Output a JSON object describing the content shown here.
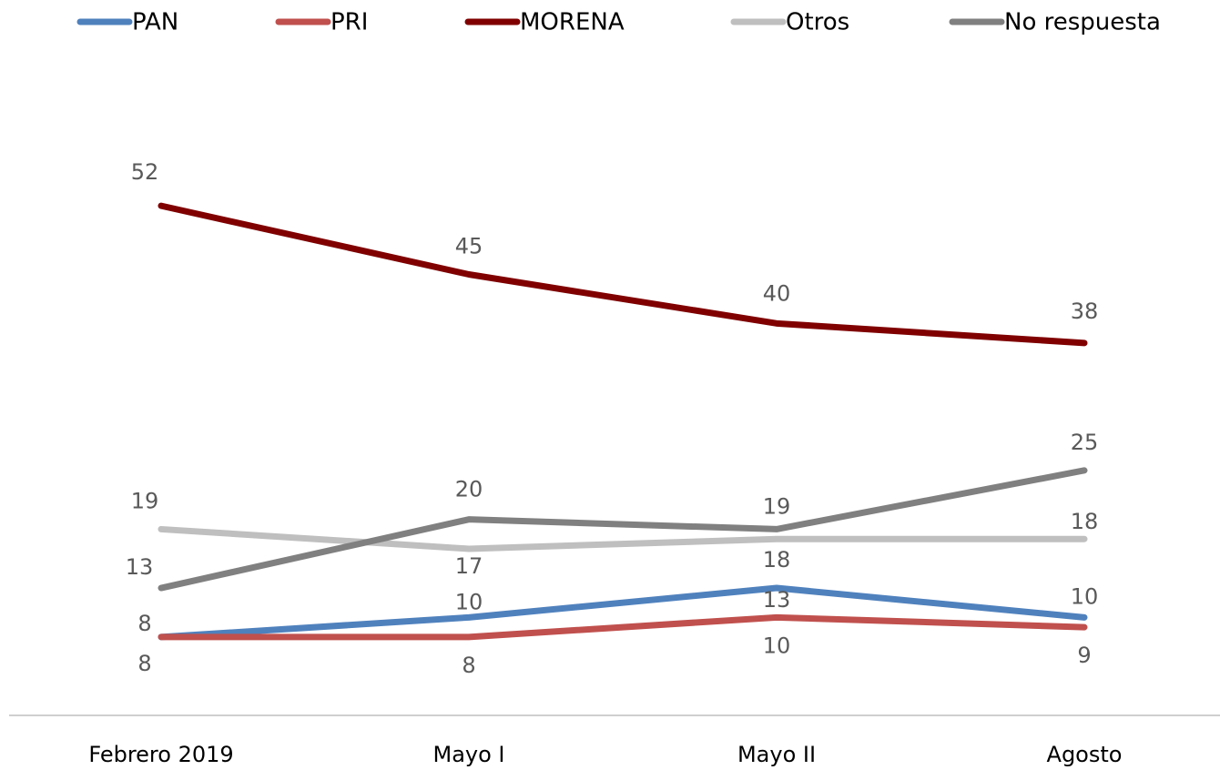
{
  "chart_data": {
    "type": "line",
    "categories": [
      "Febrero 2019",
      "Mayo I",
      "Mayo II",
      "Agosto"
    ],
    "series": [
      {
        "name": "PAN",
        "color": "#4f81bd",
        "values": [
          8,
          10,
          13,
          10
        ]
      },
      {
        "name": "PRI",
        "color": "#c0504d",
        "values": [
          8,
          8,
          10,
          9
        ]
      },
      {
        "name": "MORENA",
        "color": "#800000",
        "values": [
          52,
          45,
          40,
          38
        ]
      },
      {
        "name": "Otros",
        "color": "#bfbfbf",
        "values": [
          19,
          17,
          18,
          18
        ]
      },
      {
        "name": "No respuesta",
        "color": "#808080",
        "values": [
          13,
          20,
          19,
          25
        ]
      }
    ],
    "ylim": [
      0,
      60
    ],
    "legend": "top"
  }
}
